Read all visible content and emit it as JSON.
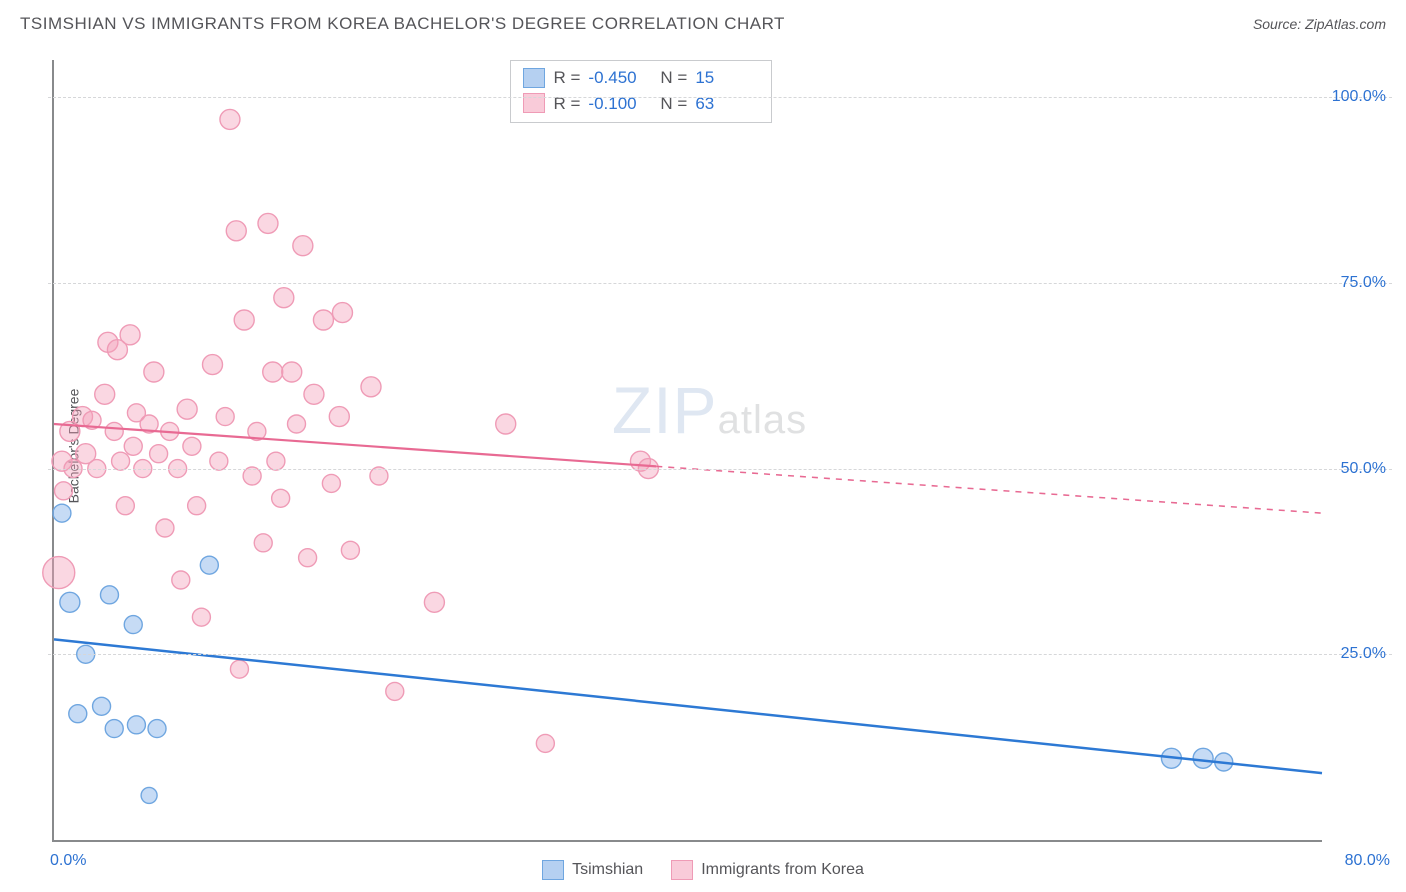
{
  "header": {
    "title": "TSIMSHIAN VS IMMIGRANTS FROM KOREA BACHELOR'S DEGREE CORRELATION CHART",
    "source": "Source: ZipAtlas.com"
  },
  "axes": {
    "ylabel": "Bachelor's Degree",
    "xlim": [
      0,
      80
    ],
    "ylim": [
      0,
      105
    ],
    "xticks": [
      {
        "v": 0,
        "label": "0.0%"
      },
      {
        "v": 80,
        "label": "80.0%"
      }
    ],
    "yticks": [
      {
        "v": 25,
        "label": "25.0%"
      },
      {
        "v": 50,
        "label": "50.0%"
      },
      {
        "v": 75,
        "label": "75.0%"
      },
      {
        "v": 100,
        "label": "100.0%"
      }
    ],
    "grid_color": "#d6d7d9"
  },
  "series": {
    "blue": {
      "name": "Tsimshian",
      "fill": "rgba(120,170,230,0.42)",
      "stroke": "#6fa6e0",
      "marker_r": 9,
      "R": "-0.450",
      "N": "15",
      "trend": {
        "x1": 0,
        "y1": 27,
        "x2": 80,
        "y2": 9,
        "solid_until_x": 80,
        "color": "#2d79d4",
        "width": 2.5
      },
      "points": [
        {
          "x": 0.5,
          "y": 44,
          "r": 9
        },
        {
          "x": 1.0,
          "y": 32,
          "r": 10
        },
        {
          "x": 3.5,
          "y": 33,
          "r": 9
        },
        {
          "x": 1.5,
          "y": 17,
          "r": 9
        },
        {
          "x": 3.0,
          "y": 18,
          "r": 9
        },
        {
          "x": 3.8,
          "y": 15,
          "r": 9
        },
        {
          "x": 5.0,
          "y": 29,
          "r": 9
        },
        {
          "x": 6.5,
          "y": 15,
          "r": 9
        },
        {
          "x": 2.0,
          "y": 25,
          "r": 9
        },
        {
          "x": 5.2,
          "y": 15.5,
          "r": 9
        },
        {
          "x": 9.8,
          "y": 37,
          "r": 9
        },
        {
          "x": 6.0,
          "y": 6,
          "r": 8
        },
        {
          "x": 70.5,
          "y": 11,
          "r": 10
        },
        {
          "x": 72.5,
          "y": 11,
          "r": 10
        },
        {
          "x": 73.8,
          "y": 10.5,
          "r": 9
        }
      ]
    },
    "pink": {
      "name": "Immigrants from Korea",
      "fill": "rgba(244,160,185,0.42)",
      "stroke": "#ef9bb6",
      "marker_r": 10,
      "R": "-0.100",
      "N": "63",
      "trend": {
        "x1": 0,
        "y1": 56,
        "x2": 80,
        "y2": 44,
        "solid_until_x": 38,
        "color": "#e86a93",
        "width": 2.2
      },
      "points": [
        {
          "x": 0.3,
          "y": 36,
          "r": 16
        },
        {
          "x": 0.5,
          "y": 51,
          "r": 10
        },
        {
          "x": 0.6,
          "y": 47,
          "r": 9
        },
        {
          "x": 1.0,
          "y": 55,
          "r": 10
        },
        {
          "x": 1.2,
          "y": 50,
          "r": 9
        },
        {
          "x": 1.8,
          "y": 57,
          "r": 10
        },
        {
          "x": 2.0,
          "y": 52,
          "r": 10
        },
        {
          "x": 2.4,
          "y": 56.5,
          "r": 9
        },
        {
          "x": 2.7,
          "y": 50,
          "r": 9
        },
        {
          "x": 3.2,
          "y": 60,
          "r": 10
        },
        {
          "x": 3.4,
          "y": 67,
          "r": 10
        },
        {
          "x": 3.8,
          "y": 55,
          "r": 9
        },
        {
          "x": 4.0,
          "y": 66,
          "r": 10
        },
        {
          "x": 4.2,
          "y": 51,
          "r": 9
        },
        {
          "x": 4.5,
          "y": 45,
          "r": 9
        },
        {
          "x": 4.8,
          "y": 68,
          "r": 10
        },
        {
          "x": 5.0,
          "y": 53,
          "r": 9
        },
        {
          "x": 5.2,
          "y": 57.5,
          "r": 9
        },
        {
          "x": 5.6,
          "y": 50,
          "r": 9
        },
        {
          "x": 6.0,
          "y": 56,
          "r": 9
        },
        {
          "x": 6.3,
          "y": 63,
          "r": 10
        },
        {
          "x": 6.6,
          "y": 52,
          "r": 9
        },
        {
          "x": 7.0,
          "y": 42,
          "r": 9
        },
        {
          "x": 7.3,
          "y": 55,
          "r": 9
        },
        {
          "x": 7.8,
          "y": 50,
          "r": 9
        },
        {
          "x": 8.0,
          "y": 35,
          "r": 9
        },
        {
          "x": 8.4,
          "y": 58,
          "r": 10
        },
        {
          "x": 8.7,
          "y": 53,
          "r": 9
        },
        {
          "x": 9.0,
          "y": 45,
          "r": 9
        },
        {
          "x": 9.3,
          "y": 30,
          "r": 9
        },
        {
          "x": 10.0,
          "y": 64,
          "r": 10
        },
        {
          "x": 10.4,
          "y": 51,
          "r": 9
        },
        {
          "x": 10.8,
          "y": 57,
          "r": 9
        },
        {
          "x": 11.1,
          "y": 97,
          "r": 10
        },
        {
          "x": 11.5,
          "y": 82,
          "r": 10
        },
        {
          "x": 11.7,
          "y": 23,
          "r": 9
        },
        {
          "x": 12.0,
          "y": 70,
          "r": 10
        },
        {
          "x": 12.5,
          "y": 49,
          "r": 9
        },
        {
          "x": 12.8,
          "y": 55,
          "r": 9
        },
        {
          "x": 13.2,
          "y": 40,
          "r": 9
        },
        {
          "x": 13.5,
          "y": 83,
          "r": 10
        },
        {
          "x": 13.8,
          "y": 63,
          "r": 10
        },
        {
          "x": 14.0,
          "y": 51,
          "r": 9
        },
        {
          "x": 14.3,
          "y": 46,
          "r": 9
        },
        {
          "x": 14.5,
          "y": 73,
          "r": 10
        },
        {
          "x": 15.0,
          "y": 63,
          "r": 10
        },
        {
          "x": 15.3,
          "y": 56,
          "r": 9
        },
        {
          "x": 15.7,
          "y": 80,
          "r": 10
        },
        {
          "x": 16.0,
          "y": 38,
          "r": 9
        },
        {
          "x": 16.4,
          "y": 60,
          "r": 10
        },
        {
          "x": 17.0,
          "y": 70,
          "r": 10
        },
        {
          "x": 17.5,
          "y": 48,
          "r": 9
        },
        {
          "x": 18.0,
          "y": 57,
          "r": 10
        },
        {
          "x": 18.2,
          "y": 71,
          "r": 10
        },
        {
          "x": 18.7,
          "y": 39,
          "r": 9
        },
        {
          "x": 20.0,
          "y": 61,
          "r": 10
        },
        {
          "x": 20.5,
          "y": 49,
          "r": 9
        },
        {
          "x": 21.5,
          "y": 20,
          "r": 9
        },
        {
          "x": 24.0,
          "y": 32,
          "r": 10
        },
        {
          "x": 28.5,
          "y": 56,
          "r": 10
        },
        {
          "x": 31.0,
          "y": 13,
          "r": 9
        },
        {
          "x": 37.0,
          "y": 51,
          "r": 10
        },
        {
          "x": 37.5,
          "y": 50,
          "r": 10
        }
      ]
    }
  },
  "stats_box": {
    "R_label": "R =",
    "N_label": "N ="
  },
  "legend": {
    "blue_label": "Tsimshian",
    "pink_label": "Immigrants from Korea"
  },
  "watermark": {
    "zip": "ZIP",
    "atlas": "atlas"
  },
  "colors": {
    "axis_text": "#2d72d2",
    "body_text": "#555559",
    "blue_swatch_fill": "rgba(120,170,230,0.55)",
    "blue_swatch_stroke": "#6fa6e0",
    "pink_swatch_fill": "rgba(244,160,185,0.55)",
    "pink_swatch_stroke": "#ef9bb6"
  }
}
